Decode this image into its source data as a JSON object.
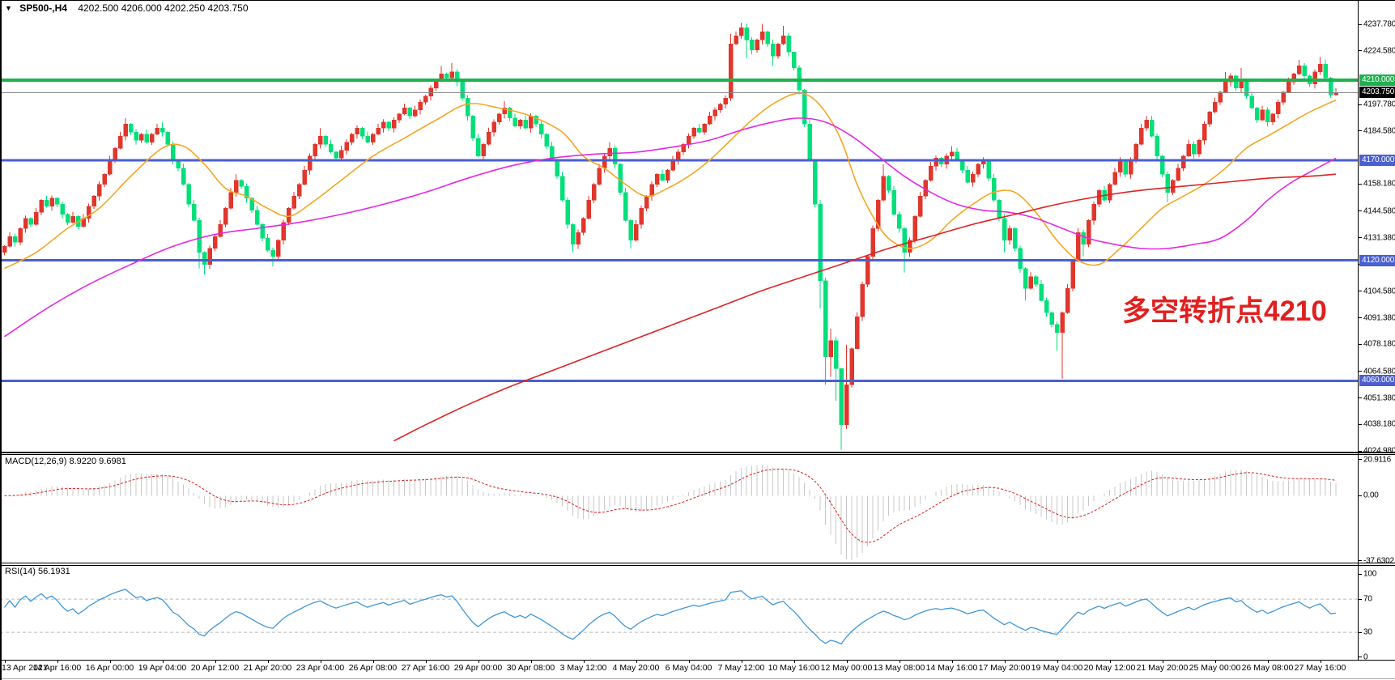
{
  "window": {
    "symbol_period": "SP500-,H4",
    "ohlc_text": "4202.500 4206.000 4202.250 4203.750",
    "open": "4202.500",
    "high": "4206.000",
    "low": "4202.250",
    "close": "4203.750"
  },
  "annotation": {
    "text": "多空转折点4210",
    "color": "#e02020"
  },
  "price_axis": {
    "ticks": [
      4237.78,
      4224.58,
      4197.78,
      4184.58,
      4158.18,
      4144.58,
      4131.38,
      4118.18,
      4104.58,
      4091.38,
      4078.18,
      4064.58,
      4051.38,
      4038.18,
      4024.98
    ],
    "badges": [
      {
        "price": 4210.0,
        "label": "4210.000",
        "type": "green"
      },
      {
        "price": 4203.75,
        "label": "4203.750",
        "type": "black"
      },
      {
        "price": 4170.0,
        "label": "4170.000",
        "type": "blue"
      },
      {
        "price": 4120.0,
        "label": "4120.000",
        "type": "blue"
      },
      {
        "price": 4060.0,
        "label": "4060.000",
        "type": "blue"
      }
    ],
    "badge_colors": {
      "green": "#1fb14e",
      "black": "#000000",
      "blue": "#4a5fd0"
    }
  },
  "hlines": [
    {
      "price": 4170.0,
      "color": "#4a5fd0",
      "width": 3
    },
    {
      "price": 4120.0,
      "color": "#4a5fd0",
      "width": 3
    },
    {
      "price": 4060.0,
      "color": "#4a5fd0",
      "width": 3
    },
    {
      "price": 4210.0,
      "color": "#1fb14e",
      "width": 4
    },
    {
      "price": 4203.75,
      "color": "#8a8a8a",
      "width": 1
    }
  ],
  "time_axis": {
    "labels": [
      "13 Apr 2021",
      "14 Apr 16:00",
      "16 Apr 00:00",
      "19 Apr 04:00",
      "20 Apr 12:00",
      "21 Apr 20:00",
      "23 Apr 04:00",
      "26 Apr 08:00",
      "27 Apr 16:00",
      "29 Apr 00:00",
      "30 Apr 08:00",
      "3 May 12:00",
      "4 May 20:00",
      "6 May 04:00",
      "7 May 12:00",
      "10 May 16:00",
      "12 May 00:00",
      "13 May 08:00",
      "14 May 16:00",
      "17 May 20:00",
      "19 May 04:00",
      "20 May 12:00",
      "21 May 20:00",
      "25 May 00:00",
      "26 May 08:00",
      "27 May 16:00"
    ],
    "bars_per_label": 10
  },
  "macd": {
    "label": "MACD(12,26,9)",
    "values": "8.9220 9.6981",
    "axis": [
      20.9116,
      0.0,
      -37.6302
    ],
    "axis_labels": [
      "20.9116",
      "0.00",
      "-37.6302"
    ]
  },
  "rsi": {
    "label": "RSI(14)",
    "value": "56.1931",
    "axis_labels": [
      "100",
      "70",
      "30",
      "0"
    ],
    "axis_values": [
      100,
      70,
      30,
      0
    ],
    "levels": [
      70,
      30
    ]
  },
  "colors": {
    "candle_up": "#e0362c",
    "candle_down": "#00df7a",
    "ma_fast": "#f5a623",
    "ma_mid": "#e329e3",
    "ma_slow": "#dd2222",
    "macd_hist": "#c8c8c8",
    "macd_signal": "#d42020",
    "rsi_line": "#3f96d8",
    "level_dash": "#bbbbbb"
  },
  "chart_data": {
    "type": "candlestick",
    "symbol": "SP500-",
    "timeframe": "H4",
    "ylim": [
      4023.8,
      4249.9
    ],
    "macd_ylim": [
      -38.6,
      24.0
    ],
    "rsi_ylim": [
      -3,
      111
    ],
    "open_first": 4124,
    "closes": [
      4127,
      4132,
      4129,
      4136,
      4141,
      4138,
      4144,
      4150,
      4147,
      4151,
      4148,
      4143,
      4139,
      4142,
      4137,
      4141,
      4147,
      4152,
      4158,
      4163,
      4170,
      4176,
      4182,
      4188,
      4184,
      4180,
      4183,
      4179,
      4183,
      4186,
      4184,
      4178,
      4170,
      4166,
      4158,
      4148,
      4140,
      4124,
      4118,
      4126,
      4132,
      4138,
      4146,
      4154,
      4160,
      4157,
      4151,
      4145,
      4138,
      4131,
      4125,
      4122,
      4130,
      4139,
      4146,
      4152,
      4158,
      4165,
      4172,
      4178,
      4182,
      4178,
      4174,
      4171,
      4175,
      4179,
      4183,
      4186,
      4182,
      4179,
      4183,
      4186,
      4189,
      4186,
      4190,
      4193,
      4196,
      4192,
      4195,
      4199,
      4202,
      4206,
      4210,
      4213,
      4211,
      4214,
      4209,
      4201,
      4192,
      4181,
      4172,
      4178,
      4184,
      4189,
      4193,
      4196,
      4191,
      4187,
      4190,
      4186,
      4192,
      4188,
      4183,
      4177,
      4170,
      4162,
      4150,
      4138,
      4128,
      4134,
      4141,
      4150,
      4158,
      4166,
      4172,
      4176,
      4168,
      4154,
      4140,
      4130,
      4138,
      4146,
      4152,
      4158,
      4163,
      4160,
      4165,
      4170,
      4174,
      4178,
      4182,
      4186,
      4184,
      4188,
      4192,
      4195,
      4198,
      4201,
      4228,
      4232,
      4236,
      4230,
      4225,
      4230,
      4234,
      4228,
      4222,
      4228,
      4232,
      4224,
      4216,
      4205,
      4188,
      4170,
      4148,
      4110,
      4072,
      4080,
      4066,
      4038,
      4058,
      4076,
      4092,
      4108,
      4122,
      4136,
      4150,
      4162,
      4155,
      4143,
      4136,
      4124,
      4130,
      4142,
      4152,
      4160,
      4167,
      4171,
      4168,
      4172,
      4174,
      4170,
      4165,
      4159,
      4163,
      4168,
      4170,
      4161,
      4150,
      4141,
      4130,
      4136,
      4126,
      4116,
      4106,
      4112,
      4108,
      4100,
      4094,
      4088,
      4084,
      4094,
      4106,
      4120,
      4134,
      4128,
      4140,
      4148,
      4155,
      4150,
      4158,
      4164,
      4170,
      4163,
      4170,
      4178,
      4186,
      4190,
      4182,
      4172,
      4163,
      4154,
      4160,
      4166,
      4172,
      4178,
      4173,
      4180,
      4188,
      4194,
      4199,
      4204,
      4209,
      4212,
      4206,
      4210,
      4202,
      4196,
      4190,
      4195,
      4189,
      4193,
      4199,
      4204,
      4209,
      4213,
      4217,
      4212,
      4208,
      4214,
      4218,
      4211,
      4202.5,
      4203.75
    ],
    "wick_overrides": {
      "23": [
        4191,
        null
      ],
      "30": [
        4189,
        null
      ],
      "37": [
        null,
        4116
      ],
      "38": [
        null,
        4113
      ],
      "44": [
        4163,
        null
      ],
      "51": [
        null,
        4117
      ],
      "60": [
        4186,
        null
      ],
      "83": [
        4217,
        null
      ],
      "85": [
        4218.5,
        null
      ],
      "95": [
        4199.5,
        null
      ],
      "108": [
        null,
        4124
      ],
      "115": [
        4179,
        null
      ],
      "119": [
        null,
        4126
      ],
      "138": [
        4233,
        null
      ],
      "140": [
        4238.5,
        null
      ],
      "141": [
        null,
        4221
      ],
      "144": [
        4238,
        null
      ],
      "146": [
        null,
        4217
      ],
      "148": [
        4237,
        null
      ],
      "150": [
        4224,
        null
      ],
      "155": [
        null,
        4096
      ],
      "156": [
        null,
        4058
      ],
      "157": [
        4086,
        4062
      ],
      "158": [
        4082,
        4050
      ],
      "159": [
        4066,
        4025.5
      ],
      "160": [
        4078,
        4036
      ],
      "162": [
        null,
        4086
      ],
      "167": [
        4168,
        null
      ],
      "171": [
        null,
        4114
      ],
      "180": [
        4177,
        null
      ],
      "190": [
        null,
        4124
      ],
      "194": [
        null,
        4100
      ],
      "200": [
        null,
        4075
      ],
      "201": [
        null,
        4061
      ],
      "205": [
        null,
        4122
      ],
      "217": [
        4192,
        null
      ],
      "221": [
        null,
        4149
      ],
      "232": [
        4214,
        null
      ],
      "235": [
        4216,
        null
      ],
      "246": [
        4220,
        null
      ],
      "250": [
        4221.5,
        null
      ],
      "253": [
        4206,
        4202.25
      ]
    },
    "ma_lines": [
      {
        "name": "ma-fast-orange",
        "colorKey": "ma_fast",
        "width": 1.6,
        "points": [
          [
            0,
            4116
          ],
          [
            6,
            4124
          ],
          [
            12,
            4136
          ],
          [
            18,
            4146
          ],
          [
            24,
            4162
          ],
          [
            30,
            4176
          ],
          [
            34,
            4177
          ],
          [
            38,
            4168
          ],
          [
            42,
            4156
          ],
          [
            46,
            4152
          ],
          [
            50,
            4146
          ],
          [
            54,
            4142
          ],
          [
            58,
            4148
          ],
          [
            64,
            4160
          ],
          [
            70,
            4172
          ],
          [
            76,
            4181
          ],
          [
            82,
            4190
          ],
          [
            88,
            4198
          ],
          [
            94,
            4196
          ],
          [
            100,
            4192
          ],
          [
            106,
            4184
          ],
          [
            110,
            4172
          ],
          [
            114,
            4166
          ],
          [
            118,
            4158
          ],
          [
            122,
            4152
          ],
          [
            126,
            4156
          ],
          [
            130,
            4162
          ],
          [
            134,
            4170
          ],
          [
            138,
            4180
          ],
          [
            142,
            4190
          ],
          [
            146,
            4198
          ],
          [
            150,
            4203
          ],
          [
            153,
            4202
          ],
          [
            156,
            4194
          ],
          [
            159,
            4180
          ],
          [
            162,
            4158
          ],
          [
            165,
            4142
          ],
          [
            168,
            4131
          ],
          [
            172,
            4126
          ],
          [
            176,
            4130
          ],
          [
            180,
            4140
          ],
          [
            184,
            4148
          ],
          [
            188,
            4154
          ],
          [
            192,
            4154
          ],
          [
            196,
            4144
          ],
          [
            200,
            4130
          ],
          [
            204,
            4120
          ],
          [
            208,
            4118
          ],
          [
            212,
            4126
          ],
          [
            216,
            4136
          ],
          [
            220,
            4146
          ],
          [
            224,
            4152
          ],
          [
            228,
            4158
          ],
          [
            232,
            4166
          ],
          [
            236,
            4176
          ],
          [
            240,
            4182
          ],
          [
            244,
            4188
          ],
          [
            248,
            4194
          ],
          [
            253,
            4200
          ]
        ]
      },
      {
        "name": "ma-mid-magenta",
        "colorKey": "ma_mid",
        "width": 1.6,
        "points": [
          [
            0,
            4082
          ],
          [
            8,
            4096
          ],
          [
            16,
            4108
          ],
          [
            24,
            4118
          ],
          [
            32,
            4127
          ],
          [
            40,
            4133
          ],
          [
            48,
            4136
          ],
          [
            56,
            4139
          ],
          [
            64,
            4143
          ],
          [
            72,
            4148
          ],
          [
            80,
            4154
          ],
          [
            88,
            4161
          ],
          [
            96,
            4167
          ],
          [
            104,
            4171
          ],
          [
            112,
            4173
          ],
          [
            120,
            4174
          ],
          [
            128,
            4177
          ],
          [
            134,
            4180
          ],
          [
            140,
            4185
          ],
          [
            146,
            4189
          ],
          [
            151,
            4191
          ],
          [
            156,
            4189
          ],
          [
            161,
            4182
          ],
          [
            166,
            4172
          ],
          [
            171,
            4162
          ],
          [
            176,
            4154
          ],
          [
            181,
            4148
          ],
          [
            186,
            4145
          ],
          [
            191,
            4144
          ],
          [
            196,
            4141
          ],
          [
            201,
            4136
          ],
          [
            206,
            4131
          ],
          [
            211,
            4128
          ],
          [
            216,
            4126
          ],
          [
            221,
            4126
          ],
          [
            226,
            4128
          ],
          [
            231,
            4131
          ],
          [
            236,
            4140
          ],
          [
            240,
            4150
          ],
          [
            244,
            4158
          ],
          [
            248,
            4164
          ],
          [
            253,
            4171
          ]
        ]
      },
      {
        "name": "ma-slow-red",
        "colorKey": "ma_slow",
        "width": 1.6,
        "points": [
          [
            74,
            4030
          ],
          [
            80,
            4038
          ],
          [
            88,
            4048
          ],
          [
            96,
            4057
          ],
          [
            104,
            4065
          ],
          [
            112,
            4073
          ],
          [
            120,
            4081
          ],
          [
            128,
            4089
          ],
          [
            136,
            4097
          ],
          [
            144,
            4105
          ],
          [
            152,
            4112
          ],
          [
            160,
            4119
          ],
          [
            168,
            4126
          ],
          [
            176,
            4132
          ],
          [
            184,
            4138
          ],
          [
            192,
            4143
          ],
          [
            200,
            4148
          ],
          [
            208,
            4152
          ],
          [
            216,
            4155
          ],
          [
            224,
            4157
          ],
          [
            232,
            4159
          ],
          [
            240,
            4161
          ],
          [
            248,
            4162
          ],
          [
            253,
            4163
          ]
        ]
      }
    ]
  }
}
